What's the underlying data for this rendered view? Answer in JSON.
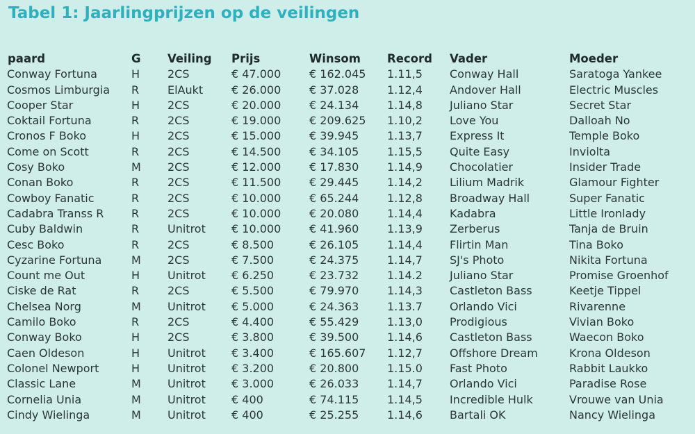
{
  "title": "Tabel 1: Jaarlingprijzen op de veilingen",
  "columns": [
    "paard",
    "G",
    "Veiling",
    "Prijs",
    "Winsom",
    "Record",
    "Vader",
    "Moeder"
  ],
  "rows": [
    [
      "Conway Fortuna",
      "H",
      "2CS",
      "€ 47.000",
      "€ 162.045",
      "1.11,5",
      "Conway Hall",
      "Saratoga Yankee"
    ],
    [
      "Cosmos Limburgia",
      "R",
      "ElAukt",
      "€ 26.000",
      "€ 37.028",
      "1.12,4",
      "Andover Hall",
      "Electric Muscles"
    ],
    [
      "Cooper Star",
      "H",
      "2CS",
      "€ 20.000",
      "€ 24.134",
      "1.14,8",
      "Juliano Star",
      "Secret Star"
    ],
    [
      "Coktail Fortuna",
      "R",
      "2CS",
      "€ 19.000",
      "€ 209.625",
      "1.10,2",
      "Love You",
      "Dalloah No"
    ],
    [
      "Cronos F Boko",
      "H",
      "2CS",
      "€ 15.000",
      "€ 39.945",
      "1.13,7",
      "Express It",
      "Temple Boko"
    ],
    [
      "Come on Scott",
      "R",
      "2CS",
      "€ 14.500",
      "€ 34.105",
      "1.15,5",
      "Quite Easy",
      "Inviolta"
    ],
    [
      "Cosy Boko",
      "M",
      "2CS",
      "€ 12.000",
      "€ 17.830",
      "1.14,9",
      "Chocolatier",
      "Insider Trade"
    ],
    [
      "Conan Boko",
      "R",
      "2CS",
      "€ 11.500",
      "€ 29.445",
      "1.14,2",
      "Lilium Madrik",
      "Glamour Fighter"
    ],
    [
      "Cowboy Fanatic",
      "R",
      "2CS",
      "€ 10.000",
      "€ 65.244",
      "1.12,8",
      "Broadway Hall",
      "Super Fanatic"
    ],
    [
      "Cadabra Transs R",
      "R",
      "2CS",
      "€ 10.000",
      "€ 20.080",
      "1.14,4",
      "Kadabra",
      "Little Ironlady"
    ],
    [
      "Cuby Baldwin",
      "R",
      "Unitrot",
      "€ 10.000",
      "€ 41.960",
      "1.13,9",
      "Zerberus",
      "Tanja de Bruin"
    ],
    [
      "Cesc Boko",
      "R",
      "2CS",
      "€ 8.500",
      "€ 26.105",
      "1.14,4",
      "Flirtin Man",
      "Tina Boko"
    ],
    [
      "Cyzarine Fortuna",
      "M",
      "2CS",
      "€ 7.500",
      "€ 24.375",
      "1.14,7",
      "SJ's Photo",
      "Nikita Fortuna"
    ],
    [
      "Count me Out",
      "H",
      "Unitrot",
      "€ 6.250",
      "€ 23.732",
      "1.14.2",
      "Juliano Star",
      "Promise Groenhof"
    ],
    [
      "Ciske de Rat",
      "R",
      "2CS",
      "€ 5.500",
      "€ 79.970",
      "1.14,3",
      "Castleton Bass",
      "Keetje Tippel"
    ],
    [
      "Chelsea Norg",
      "M",
      "Unitrot",
      "€ 5.000",
      "€ 24.363",
      "1.13.7",
      "Orlando Vici",
      "Rivarenne"
    ],
    [
      "Camilo Boko",
      "R",
      "2CS",
      "€ 4.400",
      "€ 55.429",
      "1.13,0",
      "Prodigious",
      "Vivian Boko"
    ],
    [
      "Conway Boko",
      "H",
      "2CS",
      "€ 3.800",
      "€ 39.500",
      "1.14,6",
      "Castleton Bass",
      "Waecon Boko"
    ],
    [
      "Caen Oldeson",
      "H",
      "Unitrot",
      "€ 3.400",
      "€ 165.607",
      "1.12,7",
      "Offshore Dream",
      "Krona Oldeson"
    ],
    [
      "Colonel Newport",
      "H",
      "Unitrot",
      "€ 3.200",
      "€ 20.800",
      "1.15.0",
      "Fast Photo",
      "Rabbit Laukko"
    ],
    [
      "Classic Lane",
      "M",
      "Unitrot",
      "€ 3.000",
      "€ 26.033",
      "1.14,7",
      "Orlando Vici",
      "Paradise Rose"
    ],
    [
      "Cornelia Unia",
      "M",
      "Unitrot",
      "€ 400",
      "€ 74.115",
      "1.14,5",
      "Incredible Hulk",
      "Vrouwe van Unia"
    ],
    [
      "Cindy Wielinga",
      "M",
      "Unitrot",
      "€ 400",
      "€ 25.255",
      "1.14,6",
      "Bartali OK",
      "Nancy Wielinga"
    ]
  ]
}
